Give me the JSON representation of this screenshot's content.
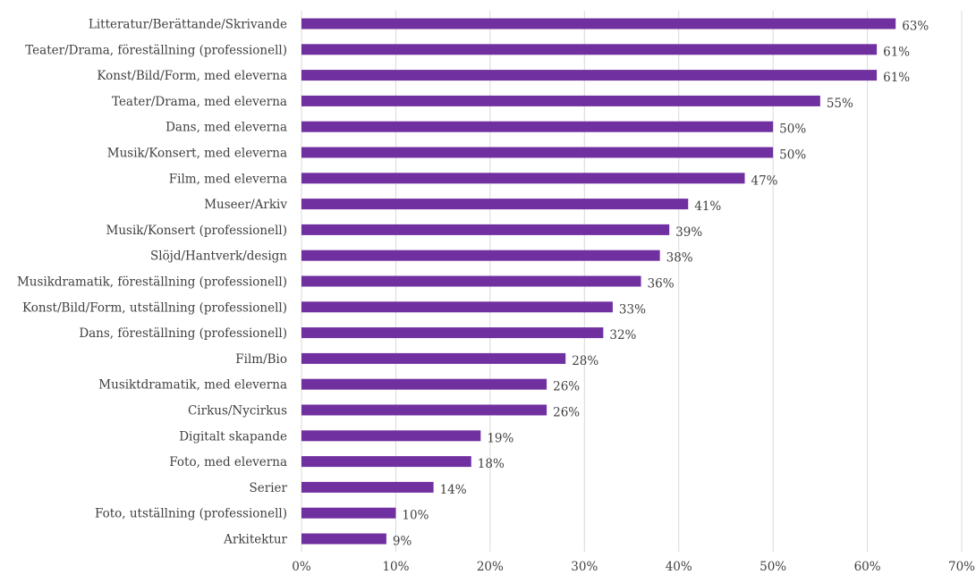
{
  "chart_data": {
    "type": "bar",
    "orientation": "horizontal",
    "title": "",
    "xlabel": "",
    "ylabel": "",
    "xlim": [
      0,
      70
    ],
    "x_ticks": [
      "0%",
      "10%",
      "20%",
      "30%",
      "40%",
      "50%",
      "60%",
      "70%"
    ],
    "grid": true,
    "legend": "none",
    "bar_color": "#7030a0",
    "categories": [
      "Litteratur/Berättande/Skrivande",
      "Teater/Drama, föreställning (professionell)",
      "Konst/Bild/Form, med eleverna",
      "Teater/Drama, med eleverna",
      "Dans, med eleverna",
      "Musik/Konsert, med eleverna",
      "Film, med eleverna",
      "Museer/Arkiv",
      "Musik/Konsert (professionell)",
      "Slöjd/Hantverk/design",
      "Musikdramatik, föreställning (professionell)",
      "Konst/Bild/Form, utställning (professionell)",
      "Dans, föreställning (professionell)",
      "Film/Bio",
      "Musiktdramatik, med eleverna",
      "Cirkus/Nycirkus",
      "Digitalt skapande",
      "Foto, med eleverna",
      "Serier",
      "Foto, utställning (professionell)",
      "Arkitektur"
    ],
    "values": [
      63,
      61,
      61,
      55,
      50,
      50,
      47,
      41,
      39,
      38,
      36,
      33,
      32,
      28,
      26,
      26,
      19,
      18,
      14,
      10,
      9
    ],
    "value_labels": [
      "63%",
      "61%",
      "61%",
      "55%",
      "50%",
      "50%",
      "47%",
      "41%",
      "39%",
      "38%",
      "36%",
      "33%",
      "32%",
      "28%",
      "26%",
      "26%",
      "19%",
      "18%",
      "14%",
      "10%",
      "9%"
    ]
  }
}
